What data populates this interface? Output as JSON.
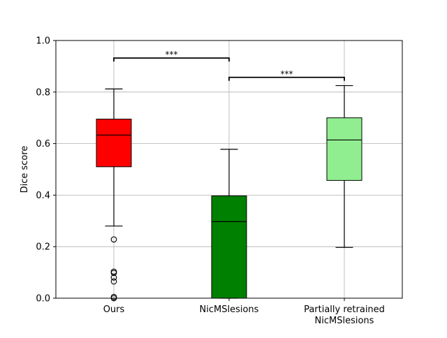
{
  "chart_data": {
    "type": "box",
    "ylabel": "Dice score",
    "ylim": [
      0,
      1.0
    ],
    "yticks": [
      "0.0",
      "0.2",
      "0.4",
      "0.6",
      "0.8",
      "1.0"
    ],
    "grid": true,
    "categories": [
      "Ours",
      "NicMSlesions",
      "Partially retrained\nNicMSlesions"
    ],
    "boxes": [
      {
        "label": "Ours",
        "color": "#ff0000",
        "whisker_low": 0.28,
        "q1": 0.51,
        "median": 0.633,
        "q3": 0.695,
        "whisker_high": 0.812,
        "outliers": [
          0.228,
          0.103,
          0.098,
          0.08,
          0.065,
          0.005,
          0.0
        ]
      },
      {
        "label": "NicMSlesions",
        "color": "#008000",
        "whisker_low": 0.0,
        "q1": 0.0,
        "median": 0.297,
        "q3": 0.397,
        "whisker_high": 0.578,
        "outliers": []
      },
      {
        "label": "Partially retrained\nNicMSlesions",
        "color": "#90ee90",
        "whisker_low": 0.197,
        "q1": 0.457,
        "median": 0.614,
        "q3": 0.7,
        "whisker_high": 0.825,
        "outliers": []
      }
    ],
    "significance": [
      {
        "from": 0,
        "to": 1,
        "y": 0.932,
        "label": "***"
      },
      {
        "from": 1,
        "to": 2,
        "y": 0.857,
        "label": "***"
      }
    ]
  }
}
